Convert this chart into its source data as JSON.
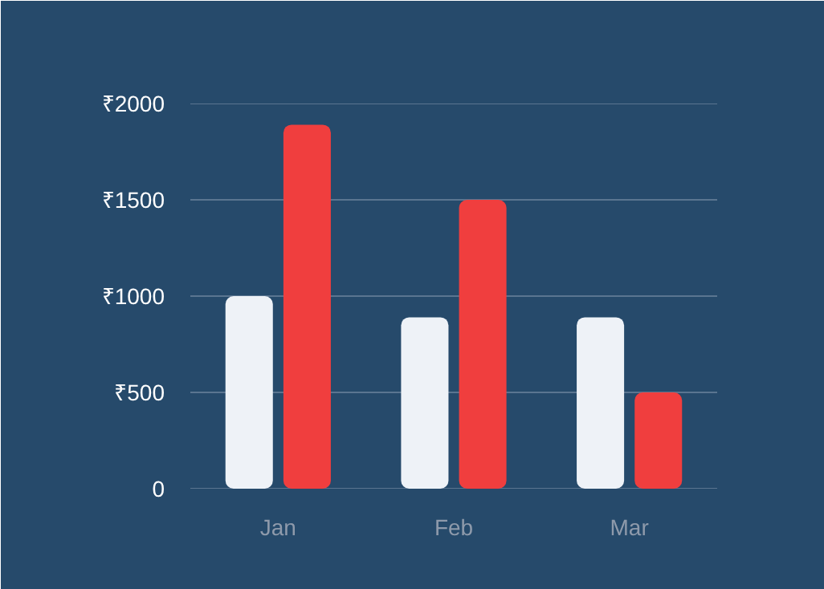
{
  "chart_data": {
    "type": "bar",
    "categories": [
      "Jan",
      "Feb",
      "Mar"
    ],
    "series": [
      {
        "color": "#eef2f7",
        "values": [
          1000,
          890,
          890
        ]
      },
      {
        "color": "#f03e3e",
        "values": [
          1890,
          1500,
          500
        ]
      }
    ],
    "ylim": [
      0,
      2000
    ],
    "yticks": [
      {
        "value": 0,
        "label": "0"
      },
      {
        "value": 500,
        "label": "₹500"
      },
      {
        "value": 1000,
        "label": "₹1000"
      },
      {
        "value": 1500,
        "label": "₹1500"
      },
      {
        "value": 2000,
        "label": "₹2000"
      }
    ],
    "grid": "y"
  }
}
